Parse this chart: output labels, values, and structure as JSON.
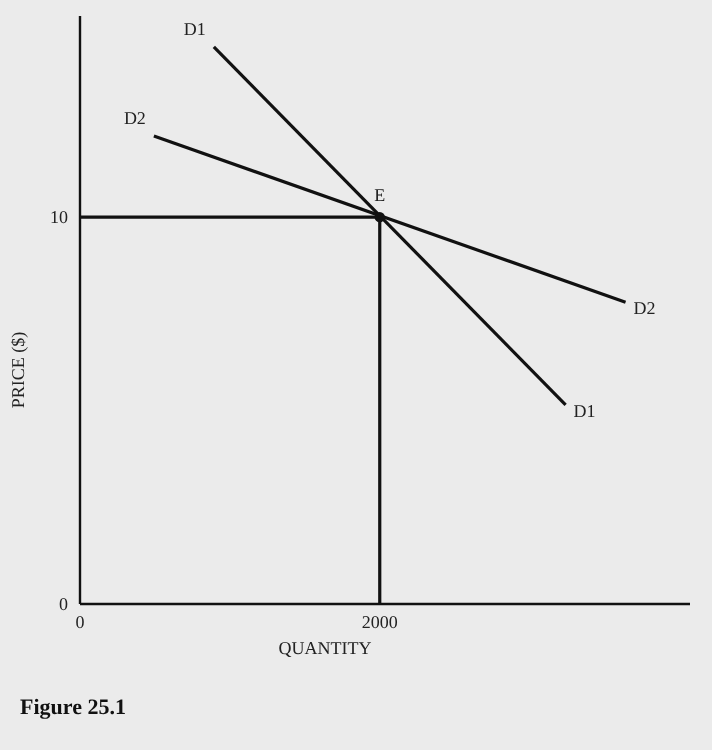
{
  "chart_data": {
    "type": "line",
    "title": "Figure 25.1",
    "xlabel": "QUANTITY",
    "ylabel": "PRICE ($)",
    "xlim": [
      0,
      4070
    ],
    "ylim": [
      0,
      15.2
    ],
    "xticks": [
      0,
      2000
    ],
    "yticks": [
      0,
      10
    ],
    "grid": false,
    "legend": false,
    "marker": "none",
    "line_style": "solid",
    "series": [
      {
        "name": "D1",
        "color": "#111111",
        "x": [
          893,
          3240
        ],
        "values": [
          14.4,
          5.15
        ]
      },
      {
        "name": "D2",
        "color": "#111111",
        "x": [
          493,
          3640
        ],
        "values": [
          12.1,
          7.8
        ]
      },
      {
        "color": "#111111",
        "x": [
          0,
          2000,
          2000
        ],
        "values": [
          10,
          10,
          0
        ]
      },
      {
        "type": "scatter",
        "color": "#111111",
        "x": [
          2000
        ],
        "values": [
          10
        ],
        "marker": "circle"
      }
    ],
    "annotations": [
      {
        "text": "E",
        "x": 2000,
        "y": 10
      }
    ]
  }
}
